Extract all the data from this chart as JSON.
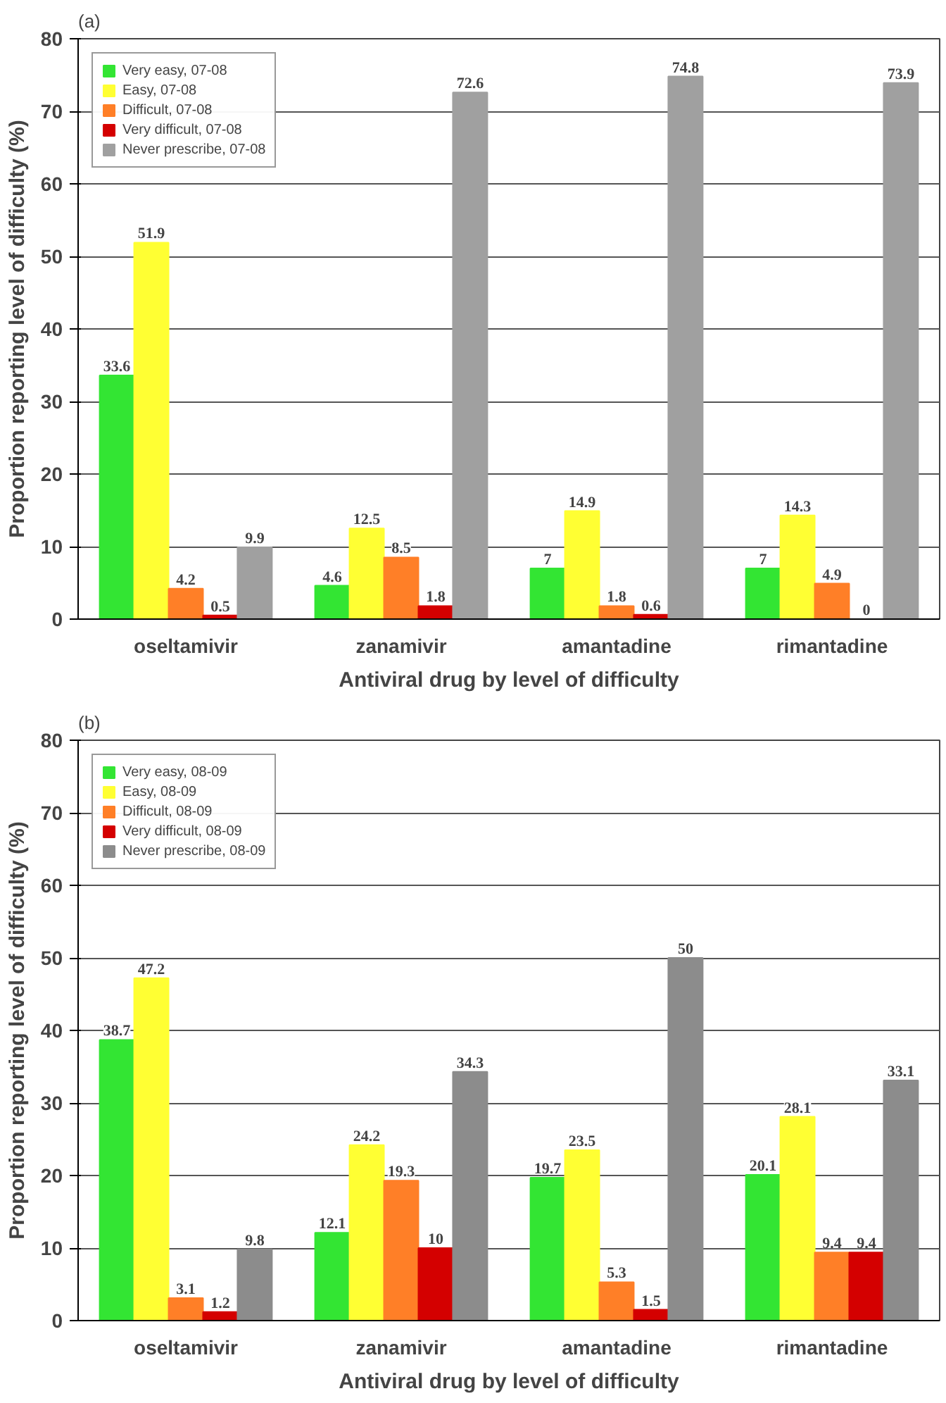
{
  "chart_data": [
    {
      "type": "bar",
      "title": "(a)",
      "xlabel": "Antiviral drug by level of difficulty",
      "ylabel": "Proportion reporting level of difficulty (%)",
      "categories": [
        "oseltamivir",
        "zanamivir",
        "amantadine",
        "rimantadine"
      ],
      "series": [
        {
          "name": "Very easy, 07-08",
          "color": "#33e533",
          "values": [
            33.6,
            4.6,
            7,
            7
          ]
        },
        {
          "name": "Easy, 07-08",
          "color": "#ffff33",
          "values": [
            51.9,
            12.5,
            14.9,
            14.3
          ]
        },
        {
          "name": "Difficult, 07-08",
          "color": "#ff7f27",
          "values": [
            4.2,
            8.5,
            1.8,
            4.9
          ]
        },
        {
          "name": "Very difficult, 07-08",
          "color": "#d40000",
          "values": [
            0.5,
            1.8,
            0.6,
            0
          ]
        },
        {
          "name": "Never prescribe, 07-08",
          "color": "#a0a0a0",
          "values": [
            9.9,
            72.6,
            74.8,
            73.9
          ]
        }
      ],
      "ylim": [
        0,
        80
      ],
      "yticks": [
        0,
        10,
        20,
        30,
        40,
        50,
        60,
        70,
        80
      ],
      "grid": "y",
      "legend": "top left",
      "data_labels": true
    },
    {
      "type": "bar",
      "title": "(b)",
      "xlabel": "Antiviral drug by level of difficulty",
      "ylabel": "Proportion reporting level of difficulty (%)",
      "categories": [
        "oseltamivir",
        "zanamivir",
        "amantadine",
        "rimantadine"
      ],
      "series": [
        {
          "name": "Very easy, 08-09",
          "color": "#33e533",
          "values": [
            38.7,
            12.1,
            19.7,
            20.1
          ]
        },
        {
          "name": "Easy, 08-09",
          "color": "#ffff33",
          "values": [
            47.2,
            24.2,
            23.5,
            28.1
          ]
        },
        {
          "name": "Difficult, 08-09",
          "color": "#ff7f27",
          "values": [
            3.1,
            19.3,
            5.3,
            9.4
          ]
        },
        {
          "name": "Very difficult, 08-09",
          "color": "#d40000",
          "values": [
            1.2,
            10,
            1.5,
            9.4
          ]
        },
        {
          "name": "Never prescribe, 08-09",
          "color": "#8c8c8c",
          "values": [
            9.8,
            34.3,
            50,
            33.1
          ]
        }
      ],
      "ylim": [
        0,
        80
      ],
      "yticks": [
        0,
        10,
        20,
        30,
        40,
        50,
        60,
        70,
        80
      ],
      "grid": "y",
      "legend": "top left",
      "data_labels": true
    }
  ]
}
